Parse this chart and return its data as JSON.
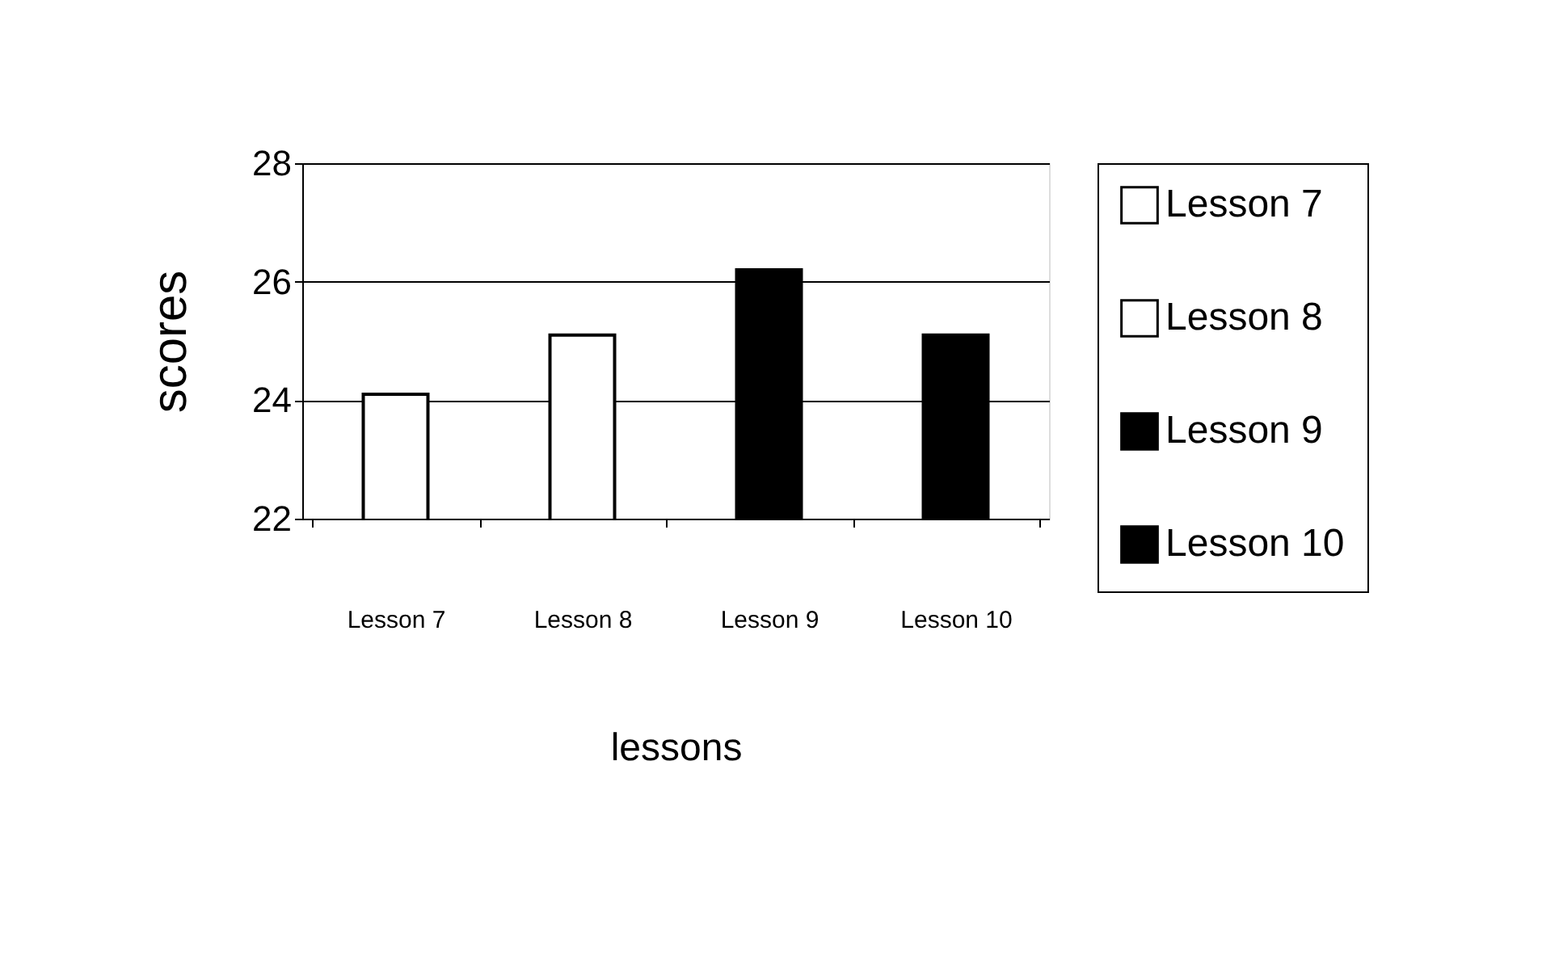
{
  "chart_data": {
    "type": "bar",
    "categories": [
      "Lesson 7",
      "Lesson 8",
      "Lesson 9",
      "Lesson 10"
    ],
    "series": [
      {
        "name": "Lesson 7",
        "color": "#ffffff",
        "values": [
          24.1,
          null,
          null,
          null
        ]
      },
      {
        "name": "Lesson 8",
        "color": "#ffffff",
        "values": [
          null,
          25.1,
          null,
          null
        ]
      },
      {
        "name": "Lesson 9",
        "color": "#000000",
        "values": [
          null,
          null,
          26.2,
          null
        ]
      },
      {
        "name": "Lesson 10",
        "color": "#000000",
        "values": [
          null,
          null,
          null,
          25.1
        ]
      }
    ],
    "xlabel": "lessons",
    "ylabel": "scores",
    "ylim": [
      22,
      28
    ],
    "yticks": [
      22,
      24,
      26,
      28
    ],
    "grid": "y",
    "legend": "right"
  }
}
